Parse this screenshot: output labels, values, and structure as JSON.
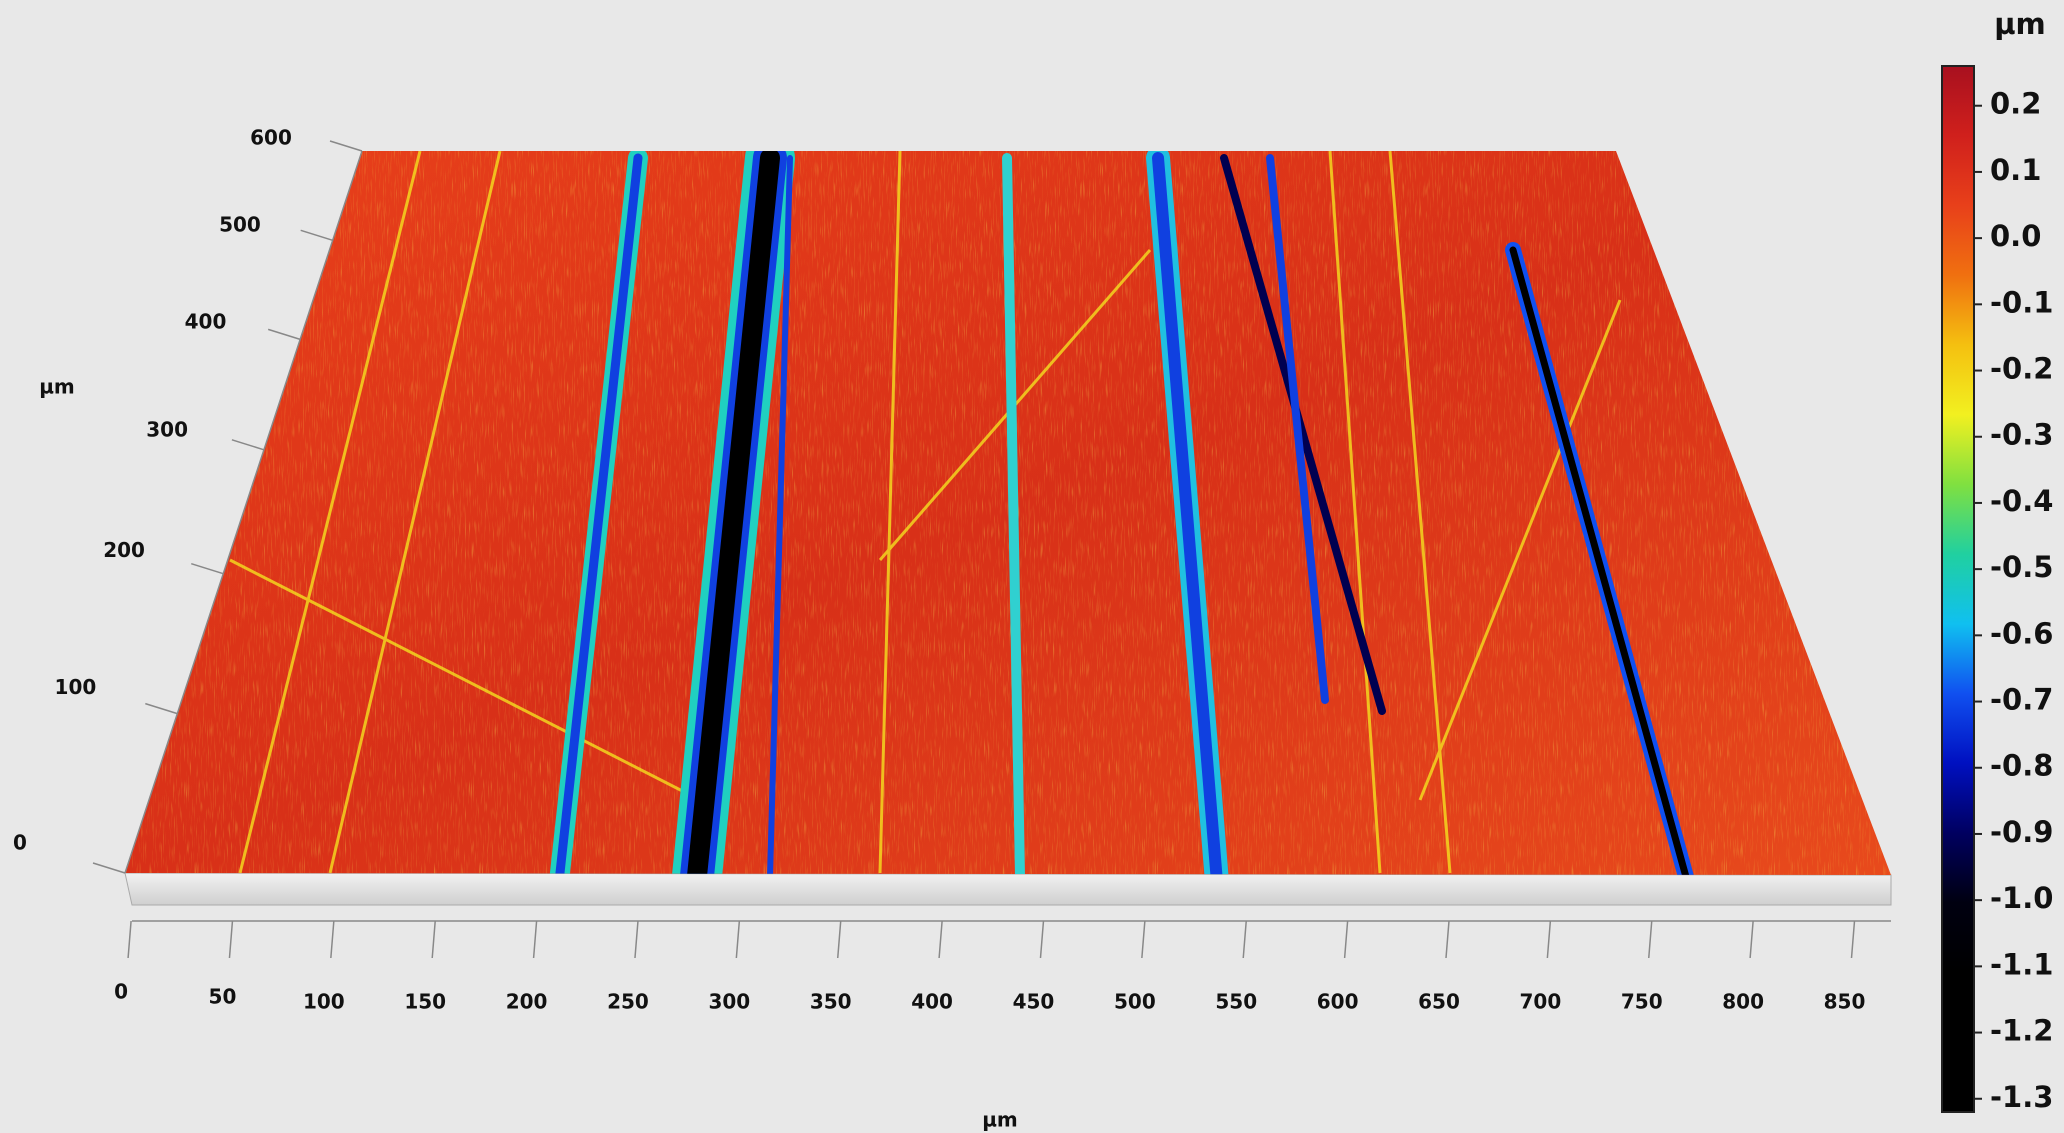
{
  "chart_data": {
    "type": "surface3d",
    "x_label": "µm",
    "y_label": "µm",
    "colorbar_label": "µm",
    "xlim": [
      -3,
      868
    ],
    "xticks": [
      0,
      50,
      100,
      150,
      200,
      250,
      300,
      350,
      400,
      450,
      500,
      550,
      600,
      650,
      700,
      750,
      800,
      850
    ],
    "ylim": [
      0,
      600
    ],
    "yticks": [
      0,
      100,
      200,
      300,
      400,
      500,
      600
    ],
    "clim": [
      -1.32,
      0.26
    ],
    "cticks": [
      0.2,
      0.1,
      {
        "value": 0,
        "label": "0.0"
      },
      -0.1,
      -0.2,
      -0.3,
      -0.4,
      -0.5,
      -0.6,
      -0.7,
      -0.8,
      -0.9,
      {
        "value": -1,
        "label": "-1.0"
      },
      -1.1,
      -1.2,
      -1.3
    ],
    "colormap": [
      "#a8101f",
      "#d0201c",
      "#e8401a",
      "#f07010",
      "#f4c010",
      "#f2f020",
      "#80e040",
      "#20d0a0",
      "#10c0f0",
      "#1050f0",
      "#0010c0",
      "#000060",
      "#000010",
      "#000000",
      "#000000",
      "#000000"
    ]
  }
}
